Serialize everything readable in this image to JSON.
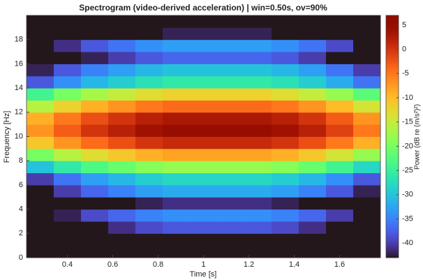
{
  "chart_data": {
    "type": "heatmap",
    "title": "Spectrogram (video-derived acceleration) | win=0.50s, ov=90%",
    "x_label": "Time [s]",
    "y_label": "Frequency [Hz]",
    "colorbar_label": "Power (dB re (m/s²)²)",
    "colormap": "turbo",
    "x_edges": [
      0.22,
      0.34,
      0.46,
      0.58,
      0.7,
      0.82,
      0.94,
      1.06,
      1.18,
      1.3,
      1.42,
      1.54,
      1.66,
      1.78
    ],
    "y_edges": [
      0,
      1,
      2,
      3,
      4,
      5,
      6,
      7,
      8,
      9,
      10,
      11,
      12,
      13,
      14,
      15,
      16,
      17,
      18,
      19,
      20
    ],
    "z": [
      [
        -43,
        -43,
        -43,
        -43,
        -43,
        -43,
        -43,
        -43,
        -43,
        -43,
        -43,
        -43,
        -43
      ],
      [
        -43,
        -43,
        -43,
        -43,
        -43,
        -43,
        -43,
        -43,
        -43,
        -43,
        -43,
        -43,
        -43
      ],
      [
        -43,
        -43,
        -43,
        -41,
        -39,
        -38,
        -38,
        -38,
        -38,
        -39,
        -41,
        -43,
        -43
      ],
      [
        -43,
        -42,
        -39,
        -37,
        -35,
        -34,
        -34,
        -34,
        -34,
        -35,
        -37,
        -40,
        -43
      ],
      [
        -43,
        -43,
        -43,
        -43,
        -42,
        -41,
        -41,
        -41,
        -41,
        -42,
        -43,
        -43,
        -43
      ],
      [
        -43,
        -40,
        -37,
        -35,
        -33,
        -32,
        -32,
        -32,
        -32,
        -33,
        -35,
        -38,
        -42
      ],
      [
        -40,
        -36,
        -33,
        -31,
        -29,
        -28,
        -28,
        -28,
        -28,
        -29,
        -31,
        -34,
        -38
      ],
      [
        -30,
        -26,
        -23,
        -21,
        -19,
        -18,
        -18,
        -18,
        -18,
        -19,
        -21,
        -24,
        -28
      ],
      [
        -20,
        -16,
        -13,
        -11,
        -9,
        -8,
        -8,
        -8,
        -8,
        -9,
        -11,
        -14,
        -18
      ],
      [
        -11,
        -7,
        -4,
        -2,
        0,
        1,
        1,
        1,
        1,
        0,
        -2,
        -5,
        -9
      ],
      [
        -7,
        -3,
        0,
        2,
        4,
        5,
        5,
        5,
        5,
        4,
        2,
        -1,
        -5
      ],
      [
        -9,
        -5,
        -2,
        0,
        2,
        3,
        3,
        3,
        3,
        2,
        0,
        -3,
        -7
      ],
      [
        -16,
        -12,
        -9,
        -7,
        -5,
        -4,
        -4,
        -4,
        -4,
        -5,
        -7,
        -10,
        -14
      ],
      [
        -24,
        -20,
        -17,
        -15,
        -13,
        -12,
        -12,
        -12,
        -12,
        -13,
        -15,
        -18,
        -22
      ],
      [
        -38,
        -34,
        -31,
        -29,
        -27,
        -26,
        -26,
        -26,
        -26,
        -27,
        -29,
        -32,
        -36
      ],
      [
        -42,
        -38,
        -35,
        -33,
        -31,
        -30,
        -30,
        -30,
        -30,
        -31,
        -33,
        -36,
        -40
      ],
      [
        -43,
        -43,
        -42,
        -40,
        -38,
        -37,
        -37,
        -37,
        -37,
        -38,
        -40,
        -43,
        -43
      ],
      [
        -43,
        -41,
        -38,
        -36,
        -34,
        -33,
        -33,
        -33,
        -33,
        -34,
        -36,
        -39,
        -43
      ],
      [
        -43,
        -43,
        -43,
        -43,
        -43,
        -42,
        -42,
        -42,
        -42,
        -43,
        -43,
        -43,
        -43
      ],
      [
        -43,
        -43,
        -43,
        -43,
        -43,
        -43,
        -43,
        -43,
        -43,
        -43,
        -43,
        -43,
        -43
      ]
    ],
    "xlim": [
      0.22,
      1.78
    ],
    "xticks": [
      0.4,
      0.6,
      0.8,
      1,
      1.2,
      1.4,
      1.6
    ],
    "ylim": [
      0,
      20
    ],
    "yticks": [
      0,
      2,
      4,
      6,
      8,
      10,
      12,
      14,
      16,
      18
    ],
    "clim": [
      -43,
      7
    ],
    "cticks": [
      5,
      0,
      -5,
      -10,
      -15,
      -20,
      -25,
      -30,
      -35,
      -40
    ]
  }
}
